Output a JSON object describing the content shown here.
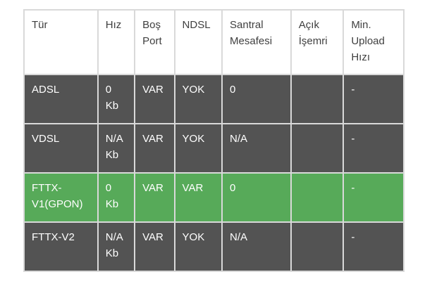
{
  "table": {
    "columns": [
      {
        "key": "tur",
        "label": "Tür"
      },
      {
        "key": "hiz",
        "label": "Hız"
      },
      {
        "key": "bos-port",
        "label": "Boş Port"
      },
      {
        "key": "ndsl",
        "label": "NDSL"
      },
      {
        "key": "santral-mesafesi",
        "label": "Santral Mesafesi"
      },
      {
        "key": "acik-isemri",
        "label": "Açık İşemri"
      },
      {
        "key": "min-upload-hizi",
        "label": "Min. Upload Hızı"
      }
    ],
    "rows": [
      {
        "id": "adsl",
        "highlighted": false,
        "cells": [
          "ADSL",
          "0 Kb",
          "VAR",
          "YOK",
          "0",
          "",
          "-"
        ]
      },
      {
        "id": "vdsl",
        "highlighted": false,
        "cells": [
          "VDSL",
          "N/A Kb",
          "VAR",
          "YOK",
          "N/A",
          "",
          "-"
        ]
      },
      {
        "id": "fttx-v1",
        "highlighted": true,
        "cells": [
          "FTTX-V1(GPON)",
          "0 Kb",
          "VAR",
          "VAR",
          "0",
          "",
          "-"
        ]
      },
      {
        "id": "fttx-v2",
        "highlighted": false,
        "cells": [
          "FTTX-V2",
          "N/A Kb",
          "VAR",
          "YOK",
          "N/A",
          "",
          "-"
        ]
      }
    ]
  },
  "colors": {
    "row_bg": "#535353",
    "highlight_bg": "#57aa59",
    "border": "#d9d9d9",
    "header_text": "#3f3f3f",
    "body_text": "#ffffff",
    "page_bg": "#ffffff"
  }
}
